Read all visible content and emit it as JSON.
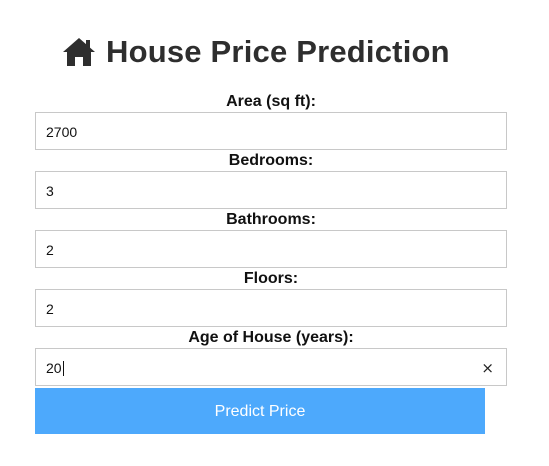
{
  "page": {
    "title": "House Price Prediction",
    "title_icon": "home-icon"
  },
  "form": {
    "fields": [
      {
        "label": "Area (sq ft):",
        "value": "2700"
      },
      {
        "label": "Bedrooms:",
        "value": "3"
      },
      {
        "label": "Bathrooms:",
        "value": "2"
      },
      {
        "label": "Floors:",
        "value": "2"
      },
      {
        "label": "Age of House (years):",
        "value": "20",
        "clear_icon": "×"
      }
    ],
    "submit_label": "Predict Price"
  },
  "colors": {
    "button_bg": "#4da9fc",
    "button_text": "#ffffff",
    "title_text": "#2e2e2e",
    "input_border": "#c8c8c8"
  }
}
